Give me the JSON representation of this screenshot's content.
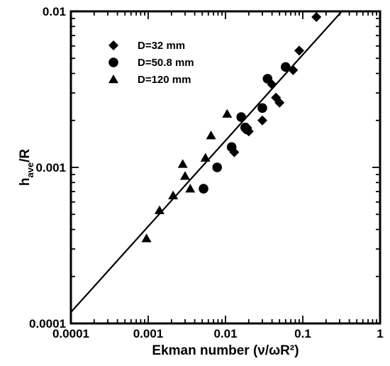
{
  "chart_data": {
    "type": "scatter",
    "x_scale": "log",
    "y_scale": "log",
    "xlim": [
      0.0001,
      1
    ],
    "ylim": [
      0.0001,
      0.01
    ],
    "x_ticks": [
      {
        "value": 0.0001,
        "label": "0.0001"
      },
      {
        "value": 0.001,
        "label": "0.001"
      },
      {
        "value": 0.01,
        "label": "0.01"
      },
      {
        "value": 0.1,
        "label": "0.1"
      },
      {
        "value": 1,
        "label": "1"
      }
    ],
    "y_ticks": [
      {
        "value": 0.0001,
        "label": "0.0001"
      },
      {
        "value": 0.001,
        "label": "0.001"
      },
      {
        "value": 0.01,
        "label": "0.01"
      }
    ],
    "xlabel": "Ekman number (ν/ωR²)",
    "ylabel_main": "h",
    "ylabel_sub": "ave",
    "ylabel_tail": "/R",
    "grid": false,
    "legend_position": "top-left",
    "fit_line": {
      "x": [
        0.0001,
        0.32
      ],
      "y": [
        0.000118,
        0.01
      ]
    },
    "series": [
      {
        "name": "D=32 mm",
        "marker": "diamond",
        "points": [
          [
            0.15,
            0.0092
          ],
          [
            0.09,
            0.0056
          ],
          [
            0.075,
            0.0042
          ],
          [
            0.05,
            0.0026
          ],
          [
            0.045,
            0.0028
          ],
          [
            0.04,
            0.0034
          ],
          [
            0.03,
            0.002
          ],
          [
            0.02,
            0.0017
          ],
          [
            0.019,
            0.0018
          ],
          [
            0.013,
            0.00125
          ]
        ]
      },
      {
        "name": "D=50.8 mm",
        "marker": "circle",
        "points": [
          [
            0.06,
            0.0044
          ],
          [
            0.035,
            0.0037
          ],
          [
            0.03,
            0.0024
          ],
          [
            0.016,
            0.0021
          ],
          [
            0.018,
            0.0018
          ],
          [
            0.019,
            0.00175
          ],
          [
            0.012,
            0.00135
          ],
          [
            0.0078,
            0.001
          ],
          [
            0.0052,
            0.00073
          ]
        ]
      },
      {
        "name": "D=120 mm",
        "marker": "triangle",
        "points": [
          [
            0.0105,
            0.0022
          ],
          [
            0.0065,
            0.0016
          ],
          [
            0.0055,
            0.00115
          ],
          [
            0.0028,
            0.00105
          ],
          [
            0.003,
            0.00088
          ],
          [
            0.0035,
            0.00073
          ],
          [
            0.0021,
            0.00066
          ],
          [
            0.0014,
            0.00053
          ],
          [
            0.00095,
            0.00035
          ]
        ]
      }
    ]
  }
}
